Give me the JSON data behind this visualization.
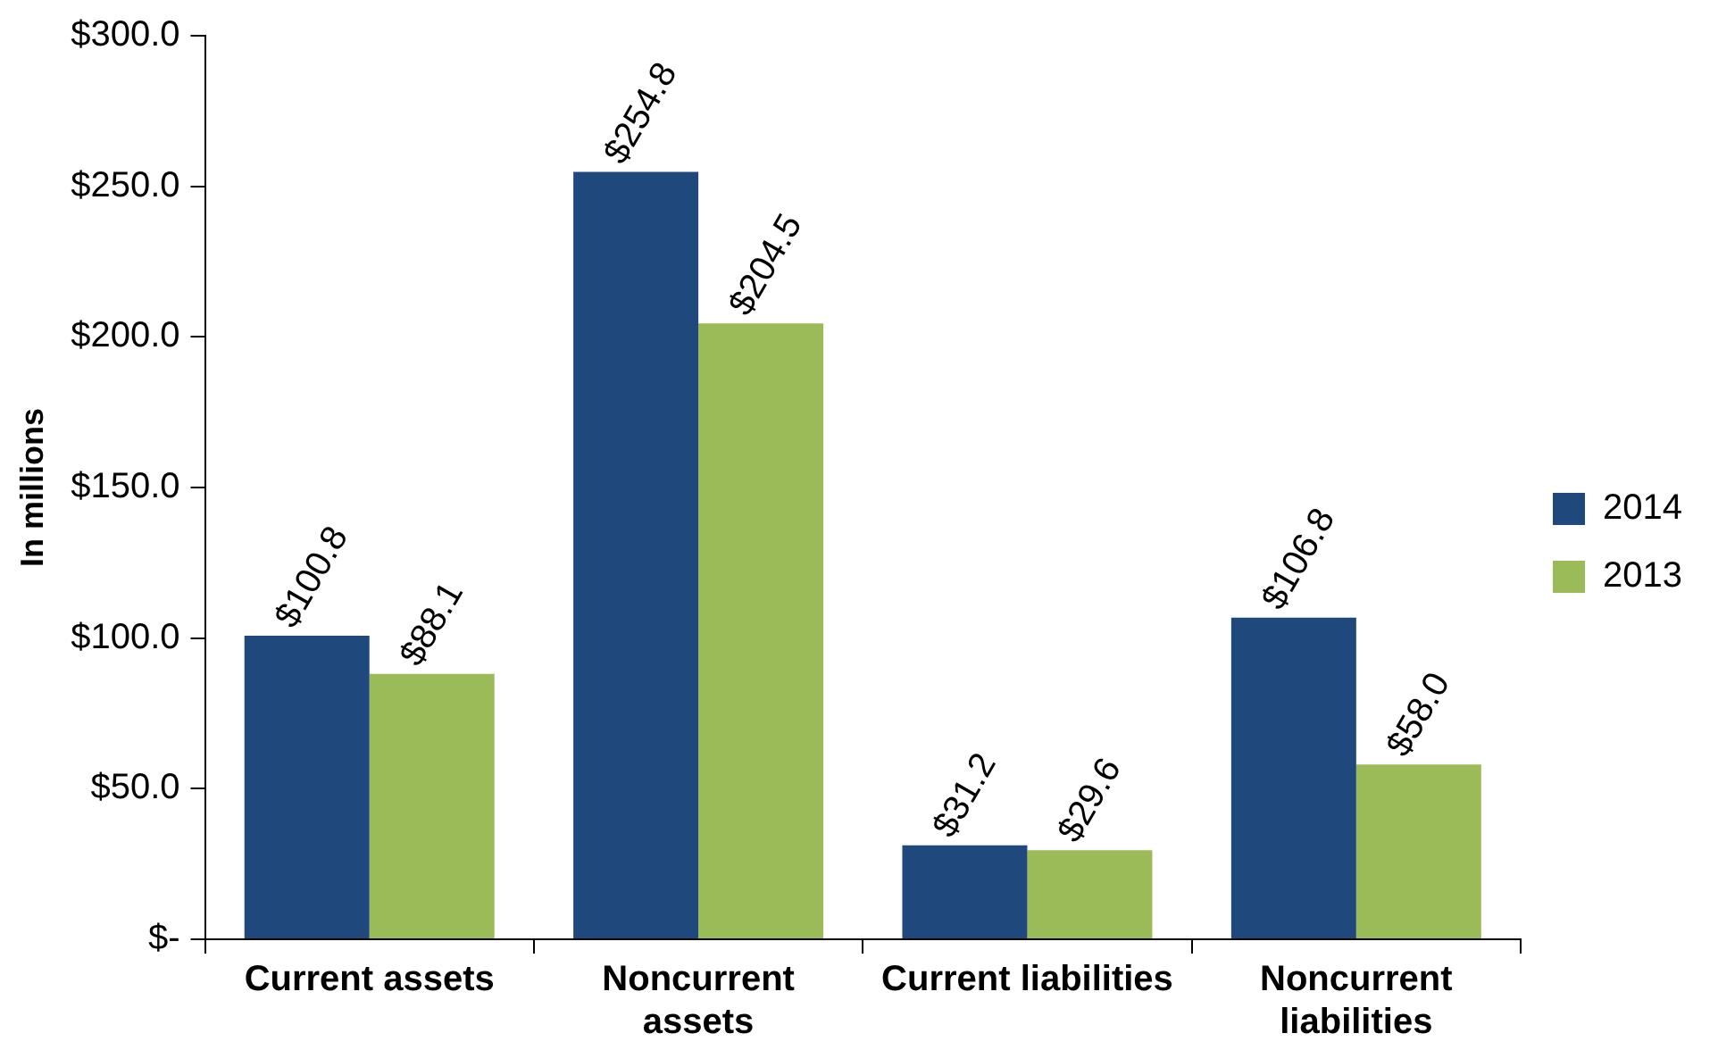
{
  "chart_data": {
    "type": "bar",
    "ylabel": "In millions",
    "categories": [
      "Current assets",
      "Noncurrent assets",
      "Current liabilities",
      "Noncurrent liabilities"
    ],
    "series": [
      {
        "name": "2014",
        "color": "#1f497d",
        "values": [
          100.8,
          254.8,
          31.2,
          106.8
        ],
        "value_labels": [
          "$100.8",
          "$254.8",
          "$31.2",
          "$106.8"
        ]
      },
      {
        "name": "2013",
        "color": "#9bbb59",
        "values": [
          88.1,
          204.5,
          29.6,
          58.0
        ],
        "value_labels": [
          "$88.1",
          "$204.5",
          "$29.6",
          "$58.0"
        ]
      }
    ],
    "ylim": [
      0,
      300
    ],
    "yticks": [
      {
        "value": 0,
        "label": "$-"
      },
      {
        "value": 50,
        "label": "$50.0"
      },
      {
        "value": 100,
        "label": "$100.0"
      },
      {
        "value": 150,
        "label": "$150.0"
      },
      {
        "value": 200,
        "label": "$200.0"
      },
      {
        "value": 250,
        "label": "$250.0"
      },
      {
        "value": 300,
        "label": "$300.0"
      }
    ],
    "grid": false,
    "legend": "right"
  }
}
